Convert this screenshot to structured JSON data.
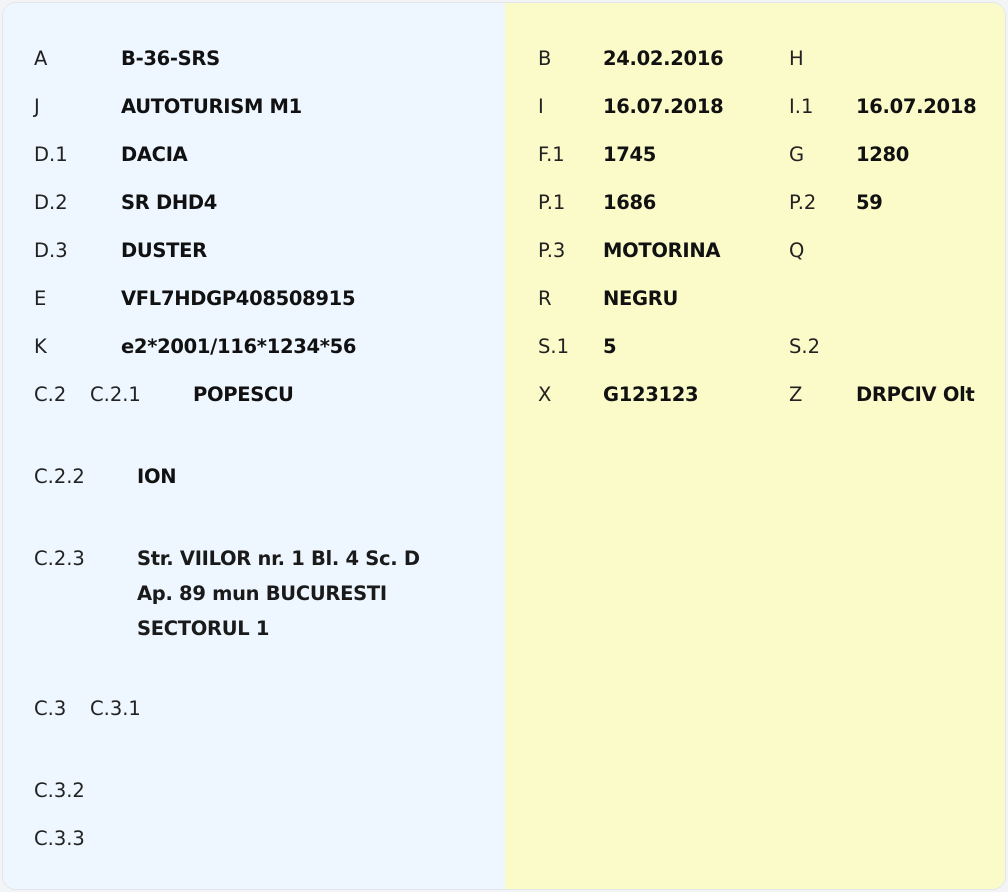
{
  "left": {
    "rows": [
      {
        "label": "A",
        "value": "B-36-SRS"
      },
      {
        "label": "J",
        "value": "AUTOTURISM M1"
      },
      {
        "label": "D.1",
        "value": "DACIA"
      },
      {
        "label": "D.2",
        "value": "SR DHD4"
      },
      {
        "label": "D.3",
        "value": "DUSTER"
      },
      {
        "label": "E",
        "value": "VFL7HDGP408508915"
      },
      {
        "label": "K",
        "value": "e2*2001/116*1234*56"
      }
    ],
    "c2": {
      "label": "C.2",
      "c21_label": "C.2.1",
      "c21_value": "POPESCU",
      "c22_label": "C.2.2",
      "c22_value": "ION",
      "c23_label": "C.2.3",
      "c23_lines": [
        "Str. VIILOR nr. 1 Bl. 4 Sc. D",
        "Ap. 89 mun BUCURESTI",
        "SECTORUL 1"
      ]
    },
    "c3": {
      "label": "C.3",
      "c31_label": "C.3.1",
      "c32_label": "C.3.2",
      "c33_label": "C.3.3"
    }
  },
  "right": {
    "rows": [
      {
        "label1": "B",
        "value1": "24.02.2016",
        "label2": "H",
        "value2": ""
      },
      {
        "label1": "I",
        "value1": "16.07.2018",
        "label2": "I.1",
        "value2": "16.07.2018"
      },
      {
        "label1": "F.1",
        "value1": "1745",
        "label2": "G",
        "value2": "1280"
      },
      {
        "label1": "P.1",
        "value1": "1686",
        "label2": "P.2",
        "value2": "59"
      },
      {
        "label1": "P.3",
        "value1": "MOTORINA",
        "label2": "Q",
        "value2": ""
      },
      {
        "label1": "R",
        "value1": "NEGRU",
        "label2": "",
        "value2": ""
      },
      {
        "label1": "S.1",
        "value1": "5",
        "label2": "S.2",
        "value2": ""
      },
      {
        "label1": "X",
        "value1": "G123123",
        "label2": "Z",
        "value2": "DRPCIV Olt"
      }
    ]
  },
  "colors": {
    "left_bg": "#eef6ff",
    "right_bg": "#fbfbca"
  }
}
